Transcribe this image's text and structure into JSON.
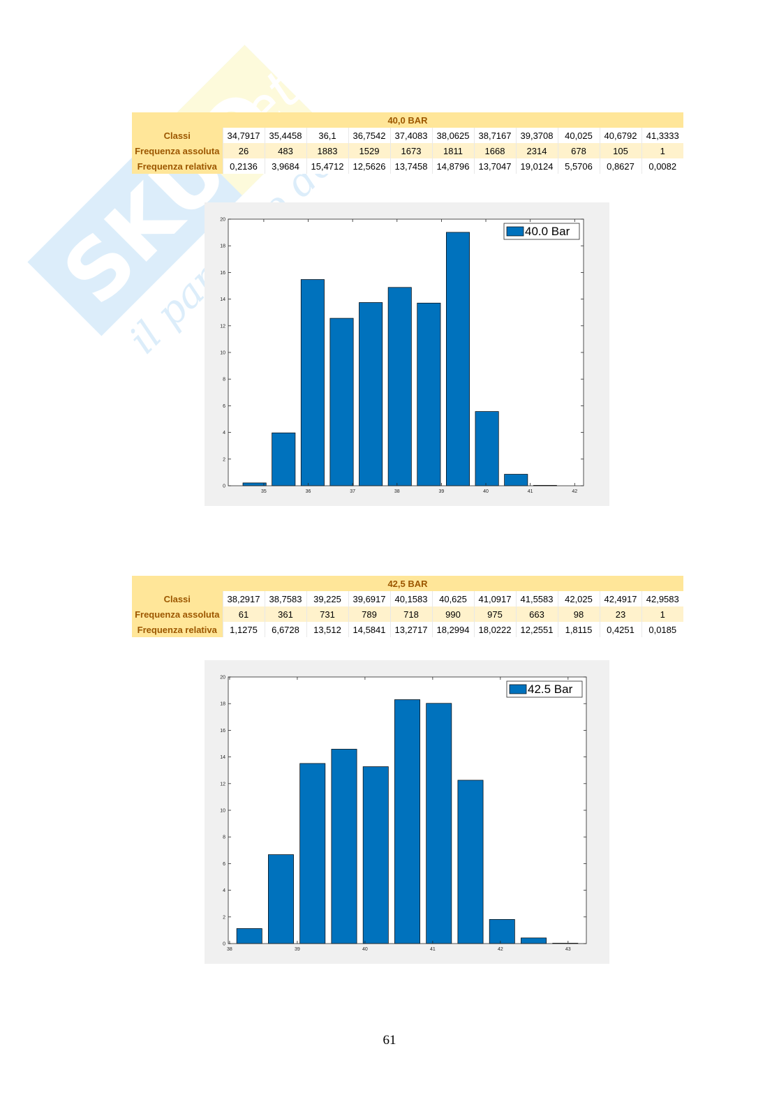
{
  "tables": [
    {
      "title": "40,0 BAR",
      "rows": [
        {
          "label": "Classi",
          "values": [
            "34,7917",
            "35,4458",
            "36,1",
            "36,7542",
            "37,4083",
            "38,0625",
            "38,7167",
            "39,3708",
            "40,025",
            "40,6792",
            "41,3333"
          ]
        },
        {
          "label": "Frequenza assoluta",
          "values": [
            "26",
            "483",
            "1883",
            "1529",
            "1673",
            "1811",
            "1668",
            "2314",
            "678",
            "105",
            "1"
          ]
        },
        {
          "label": "Frequenza relativa",
          "values": [
            "0,2136",
            "3,9684",
            "15,4712",
            "12,5626",
            "13,7458",
            "14,8796",
            "13,7047",
            "19,0124",
            "5,5706",
            "0,8627",
            "0,0082"
          ]
        }
      ]
    },
    {
      "title": "42,5 BAR",
      "rows": [
        {
          "label": "Classi",
          "values": [
            "38,2917",
            "38,7583",
            "39,225",
            "39,6917",
            "40,1583",
            "40,625",
            "41,0917",
            "41,5583",
            "42,025",
            "42,4917",
            "42,9583"
          ]
        },
        {
          "label": "Frequenza assoluta",
          "values": [
            "61",
            "361",
            "731",
            "789",
            "718",
            "990",
            "975",
            "663",
            "98",
            "23",
            "1"
          ]
        },
        {
          "label": "Frequenza relativa",
          "values": [
            "1,1275",
            "6,6728",
            "13,512",
            "14,5841",
            "13,2717",
            "18,2994",
            "18,0222",
            "12,2551",
            "1,8115",
            "0,4251",
            "0,0185"
          ]
        }
      ]
    }
  ],
  "chart_data": [
    {
      "type": "bar",
      "x": [
        34.7917,
        35.4458,
        36.1,
        36.7542,
        37.4083,
        38.0625,
        38.7167,
        39.3708,
        40.025,
        40.6792,
        41.3333
      ],
      "values": [
        0.2136,
        3.9684,
        15.4712,
        12.5626,
        13.7458,
        14.8796,
        13.7047,
        19.0124,
        5.5706,
        0.8627,
        0.0082
      ],
      "bar_width": 0.5233,
      "xlim": [
        34.2,
        42.2
      ],
      "ylim": [
        0,
        20
      ],
      "xticks": [
        35,
        36,
        37,
        38,
        39,
        40,
        41,
        42
      ],
      "yticks": [
        0,
        2,
        4,
        6,
        8,
        10,
        12,
        14,
        16,
        18,
        20
      ],
      "legend": [
        "40.0 Bar"
      ],
      "legend_position": "top-right",
      "grid": false,
      "color": "#0072bd"
    },
    {
      "type": "bar",
      "x": [
        38.2917,
        38.7583,
        39.225,
        39.6917,
        40.1583,
        40.625,
        41.0917,
        41.5583,
        42.025,
        42.4917,
        42.9583
      ],
      "values": [
        1.1275,
        6.6728,
        13.512,
        14.5841,
        13.2717,
        18.2994,
        18.0222,
        12.2551,
        1.8115,
        0.4251,
        0.0185
      ],
      "bar_width": 0.3733,
      "xlim": [
        37.98,
        43.27
      ],
      "ylim": [
        0,
        20
      ],
      "xticks": [
        38,
        39,
        40,
        41,
        42,
        43
      ],
      "yticks": [
        0,
        2,
        4,
        6,
        8,
        10,
        12,
        14,
        16,
        18,
        20
      ],
      "legend": [
        "42.5 Bar"
      ],
      "legend_position": "top-right",
      "grid": false,
      "color": "#0072bd"
    }
  ],
  "watermark": {
    "brand": "SKUOLA.net",
    "tagline": "il paradiso dello studente"
  },
  "page_number": "61"
}
